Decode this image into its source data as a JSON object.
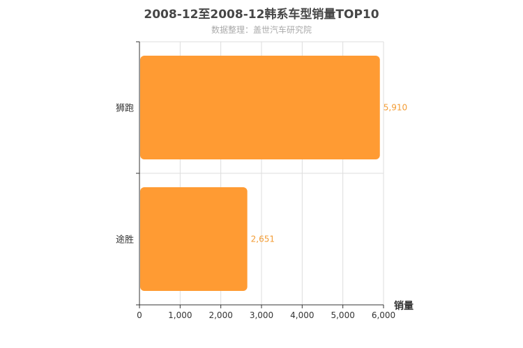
{
  "chart_data": {
    "type": "bar",
    "orientation": "horizontal",
    "title": "2008-12至2008-12韩系车型销量TOP10",
    "subtitle": "数据整理：盖世汽车研究院",
    "categories": [
      "狮跑",
      "途胜"
    ],
    "values": [
      5910,
      2651
    ],
    "data_labels": [
      "5,910",
      "2,651"
    ],
    "xlabel": "销量",
    "ylabel": "",
    "xlim": [
      0,
      6000
    ],
    "x_ticks": [
      0,
      1000,
      2000,
      3000,
      4000,
      5000,
      6000
    ],
    "x_tick_labels": [
      "0",
      "1,000",
      "2,000",
      "3,000",
      "4,000",
      "5,000",
      "6,000"
    ],
    "grid": true,
    "bar_color": "#ff9b33",
    "label_color": "#f39c34"
  }
}
